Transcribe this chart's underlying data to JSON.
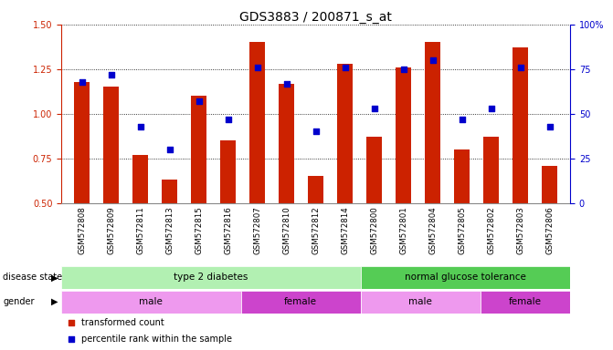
{
  "title": "GDS3883 / 200871_s_at",
  "samples": [
    "GSM572808",
    "GSM572809",
    "GSM572811",
    "GSM572813",
    "GSM572815",
    "GSM572816",
    "GSM572807",
    "GSM572810",
    "GSM572812",
    "GSM572814",
    "GSM572800",
    "GSM572801",
    "GSM572804",
    "GSM572805",
    "GSM572802",
    "GSM572803",
    "GSM572806"
  ],
  "transformed_count": [
    1.18,
    1.15,
    0.77,
    0.63,
    1.1,
    0.85,
    1.4,
    1.17,
    0.65,
    1.28,
    0.87,
    1.26,
    1.4,
    0.8,
    0.87,
    1.37,
    0.71
  ],
  "percentile_rank": [
    68,
    72,
    43,
    30,
    57,
    47,
    76,
    67,
    40,
    76,
    53,
    75,
    80,
    47,
    53,
    76,
    43
  ],
  "bar_color": "#cc2200",
  "dot_color": "#0000cc",
  "ylim_left": [
    0.5,
    1.5
  ],
  "ylim_right": [
    0,
    100
  ],
  "yticks_left": [
    0.5,
    0.75,
    1.0,
    1.25,
    1.5
  ],
  "yticks_right": [
    0,
    25,
    50,
    75,
    100
  ],
  "disease_state_groups": [
    {
      "label": "type 2 diabetes",
      "start": 0,
      "end": 9,
      "color": "#b2f0b2"
    },
    {
      "label": "normal glucose tolerance",
      "start": 10,
      "end": 16,
      "color": "#55cc55"
    }
  ],
  "gender_groups": [
    {
      "label": "male",
      "start": 0,
      "end": 5,
      "color": "#ee99ee"
    },
    {
      "label": "female",
      "start": 6,
      "end": 9,
      "color": "#cc44cc"
    },
    {
      "label": "male",
      "start": 10,
      "end": 13,
      "color": "#ee99ee"
    },
    {
      "label": "female",
      "start": 14,
      "end": 16,
      "color": "#cc44cc"
    }
  ],
  "legend_items": [
    {
      "label": "transformed count",
      "color": "#cc2200"
    },
    {
      "label": "percentile rank within the sample",
      "color": "#0000cc"
    }
  ],
  "bar_width": 0.55,
  "background_color": "#ffffff",
  "title_fontsize": 10,
  "tick_label_fontsize": 7,
  "annotation_fontsize": 7.5,
  "xlabel_bg_color": "#cccccc"
}
